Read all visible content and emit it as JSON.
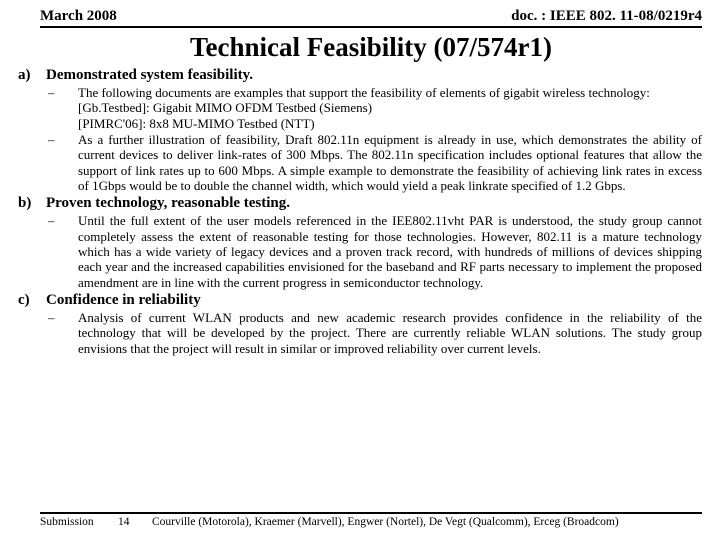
{
  "header": {
    "left": "March 2008",
    "right": "doc. : IEEE 802. 11-08/0219r4"
  },
  "title": "Technical Feasibility (07/574r1)",
  "sections": {
    "a": {
      "letter": "a)",
      "heading": "Demonstrated system feasibility.",
      "bullets": {
        "b0": "The following documents are examples that support the feasibility of elements of gigabit wireless technology:\n[Gb.Testbed]: Gigabit MIMO OFDM Testbed (Siemens)\n[PIMRC'06]: 8x8 MU-MIMO Testbed (NTT)",
        "b1": "As a further illustration of feasibility, Draft 802.11n equipment is already in use, which demonstrates the ability of current devices to deliver link-rates of 300 Mbps. The 802.11n specification includes optional features that allow the support of link rates up to 600 Mbps. A simple example to demonstrate the feasibility of achieving link rates in excess of 1Gbps would be to double the channel width, which would yield a peak linkrate specified of 1.2 Gbps."
      }
    },
    "b": {
      "letter": "b)",
      "heading": "Proven technology, reasonable testing.",
      "bullets": {
        "b0": "Until the full extent of the user models referenced in the IEE802.11vht PAR is understood, the study group cannot completely assess the extent of reasonable testing for those technologies. However, 802.11 is a mature technology which has a wide variety of legacy devices and a proven track record, with hundreds of millions of devices shipping each year and the increased capabilities envisioned for the baseband and RF parts necessary to implement the proposed amendment are in line with the current progress in semiconductor technology."
      }
    },
    "c": {
      "letter": "c)",
      "heading": "Confidence in reliability",
      "bullets": {
        "b0": "Analysis of current WLAN products and new academic research provides confidence in the reliability of the technology that will be developed by the project. There are currently reliable WLAN solutions. The study group envisions that the project will result in similar or improved reliability over current levels."
      }
    }
  },
  "footer": {
    "submission": "Submission",
    "page": "14",
    "names": "Courville (Motorola), Kraemer (Marvell), Engwer (Nortel), De Vegt (Qualcomm), Erceg (Broadcom)"
  }
}
